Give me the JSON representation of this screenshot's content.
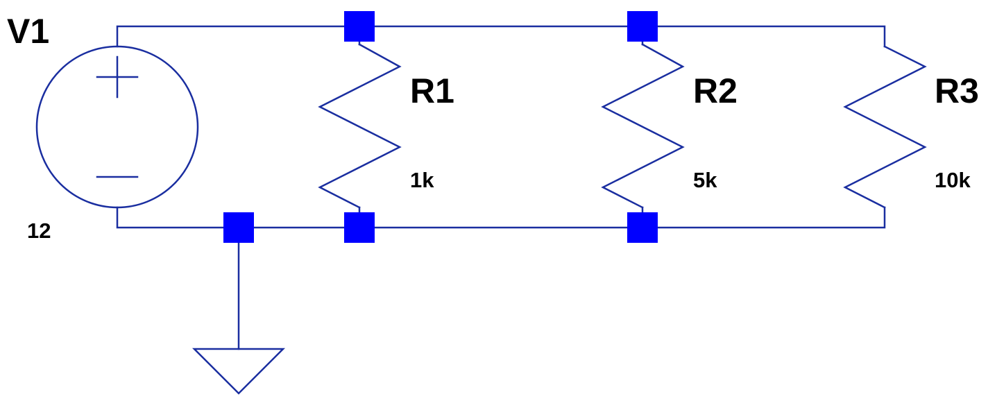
{
  "colors": {
    "wire": "#1a2ea0",
    "junction": "#0000ff",
    "text": "#000000",
    "background": "#ffffff"
  },
  "components": {
    "v1": {
      "type": "voltage-source",
      "ref": "V1",
      "value": "12"
    },
    "r1": {
      "type": "resistor",
      "ref": "R1",
      "value": "1k"
    },
    "r2": {
      "type": "resistor",
      "ref": "R2",
      "value": "5k"
    },
    "r3": {
      "type": "resistor",
      "ref": "R3",
      "value": "10k"
    },
    "gnd": {
      "type": "ground"
    }
  },
  "source_symbols": {
    "plus": "+",
    "minus": "−"
  }
}
